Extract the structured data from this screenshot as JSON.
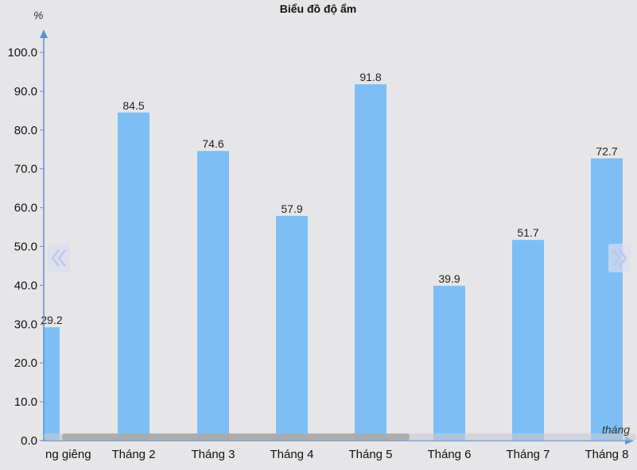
{
  "chart_data": {
    "type": "bar",
    "title": "Biểu đồ độ ẩm",
    "xlabel": "tháng",
    "ylabel": "%",
    "categories": [
      "ng giêng",
      "Tháng 2",
      "Tháng 3",
      "Tháng 4",
      "Tháng 5",
      "Tháng 6",
      "Tháng 7",
      "Tháng 8"
    ],
    "values": [
      29.2,
      84.5,
      74.6,
      57.9,
      91.8,
      39.9,
      51.7,
      72.7
    ],
    "ylim": [
      0,
      100
    ],
    "yticks": [
      "0.0",
      "10.0",
      "20.0",
      "30.0",
      "40.0",
      "50.0",
      "60.0",
      "70.0",
      "80.0",
      "90.0",
      "100.0"
    ],
    "grid": false,
    "bar_color": "#7dbff5",
    "axis_color": "#5b8fd6"
  },
  "controls": {
    "prev_icon": "double-chevron-left-icon",
    "next_icon": "double-chevron-right-icon",
    "scroll_thumb_level": 0.6
  }
}
